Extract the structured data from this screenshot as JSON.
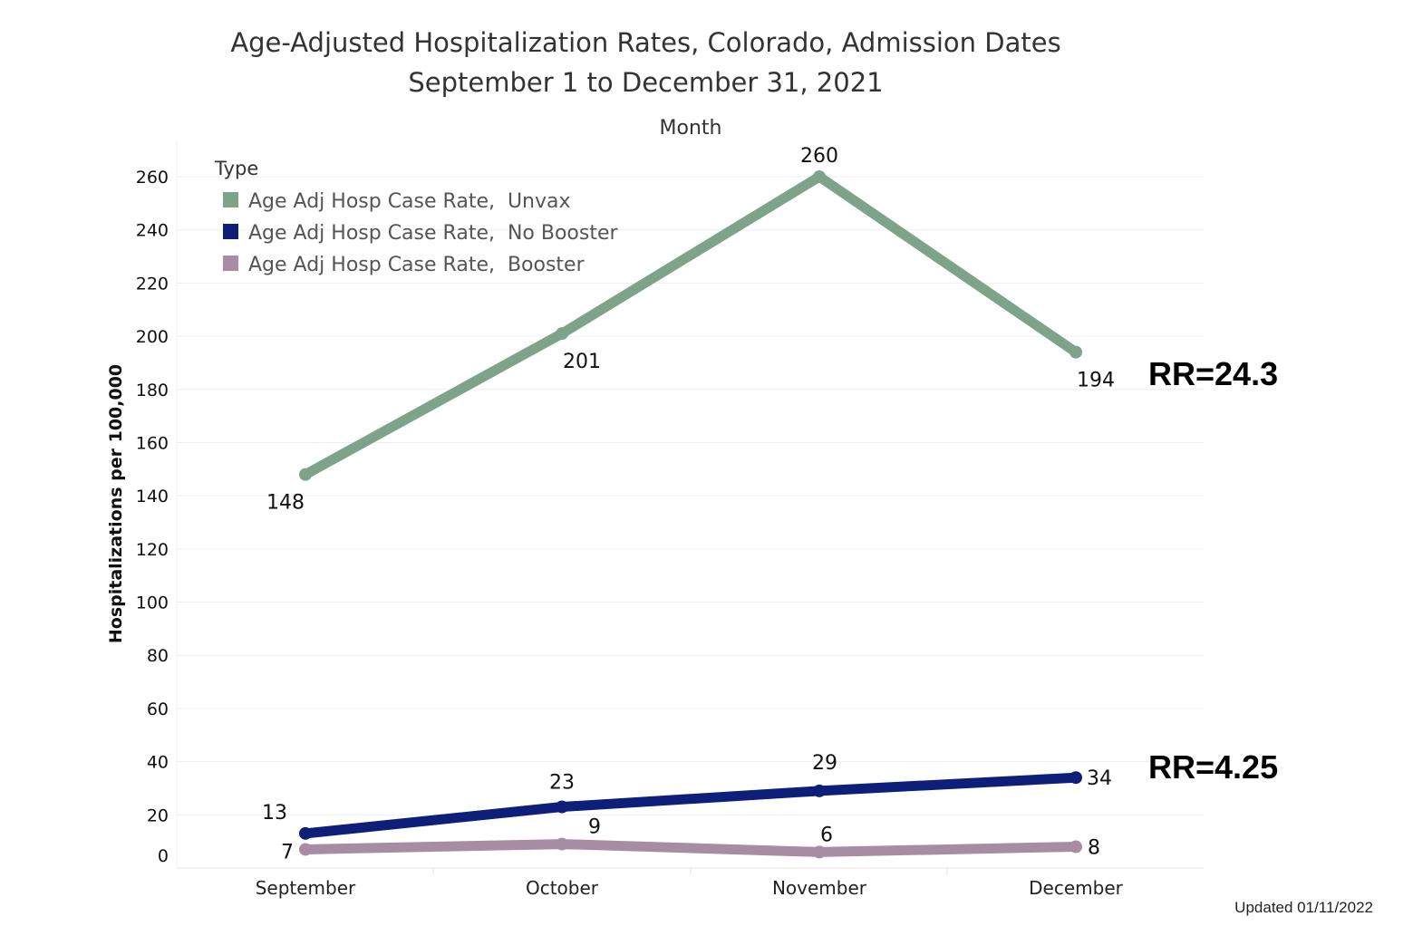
{
  "title_line1": "Age-Adjusted Hospitalization Rates, Colorado, Admission Dates",
  "title_line2": "September 1 to December 31, 2021",
  "footer": "Updated 01/11/2022",
  "annotations": {
    "rr_unvax": "RR=24.3",
    "rr_no_booster": "RR=4.25"
  },
  "chart_data": {
    "type": "line",
    "title": "Age-Adjusted Hospitalization Rates, Colorado, Admission Dates September 1 to December 31, 2021",
    "column_header": "Month",
    "xlabel": "",
    "ylabel": "Hospitalizations per 100,000",
    "categories": [
      "September",
      "October",
      "November",
      "December"
    ],
    "ylim": [
      0,
      260
    ],
    "yticks": [
      0,
      20,
      40,
      60,
      80,
      100,
      120,
      140,
      160,
      180,
      200,
      220,
      240,
      260
    ],
    "grid": true,
    "legend": {
      "title": "Type",
      "placement": "top-left"
    },
    "series": [
      {
        "name": "Age Adj Hosp Case Rate,  Unvax",
        "color": "#7da38a",
        "values": [
          148,
          201,
          260,
          194
        ]
      },
      {
        "name": "Age Adj Hosp Case Rate,  No Booster",
        "color": "#0d1f78",
        "values": [
          13,
          23,
          29,
          34
        ]
      },
      {
        "name": "Age Adj Hosp Case Rate,  Booster",
        "color": "#a78ca3",
        "values": [
          7,
          9,
          6,
          8
        ]
      }
    ]
  }
}
